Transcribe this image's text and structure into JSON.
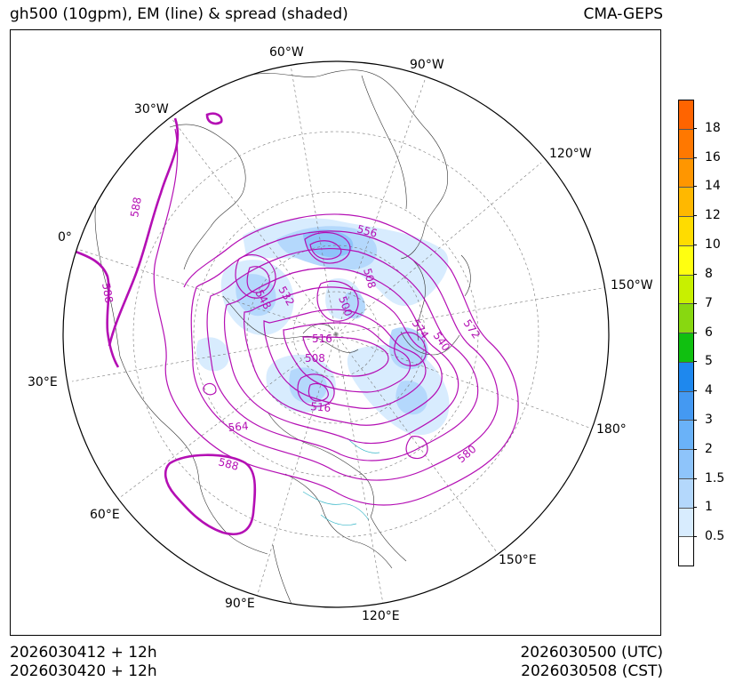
{
  "title_left": "gh500 (10gpm), EM (line) & spread (shaded)",
  "title_right": "CMA-GEPS",
  "init_utc": "2026030412 + 12h",
  "init_cst": "2026030420 + 12h",
  "valid_utc": "2026030500 (UTC)",
  "valid_cst": "2026030508 (CST)",
  "meridian_labels": [
    "60°W",
    "90°W",
    "30°W",
    "120°W",
    "0°",
    "150°W",
    "30°E",
    "180°",
    "60°E",
    "150°E",
    "90°E",
    "120°E"
  ],
  "contour_labels": [
    "588",
    "588",
    "556",
    "508",
    "548",
    "532",
    "500",
    "574",
    "540",
    "572",
    "516",
    "508",
    "516",
    "564",
    "588",
    "580"
  ],
  "colorbar": {
    "ticks": [
      "0.5",
      "1",
      "1.5",
      "2",
      "3",
      "4",
      "5",
      "6",
      "7",
      "8",
      "10",
      "12",
      "14",
      "16",
      "18"
    ],
    "colors": [
      "#ffffff",
      "#d8ecfe",
      "#b4d8fc",
      "#8ec4fa",
      "#6ab2f8",
      "#4499f2",
      "#1e88ee",
      "#10c010",
      "#88d810",
      "#c8f000",
      "#ffff10",
      "#ffdc00",
      "#ffb800",
      "#ff9600",
      "#ff7800",
      "#ff6400"
    ],
    "colors_count": 16
  },
  "colors": {
    "contour": "#b40fb4",
    "spread_low": "#d8ecfe",
    "spread_mid": "#b4d8fc",
    "spread_high": "#8ec4fa"
  }
}
